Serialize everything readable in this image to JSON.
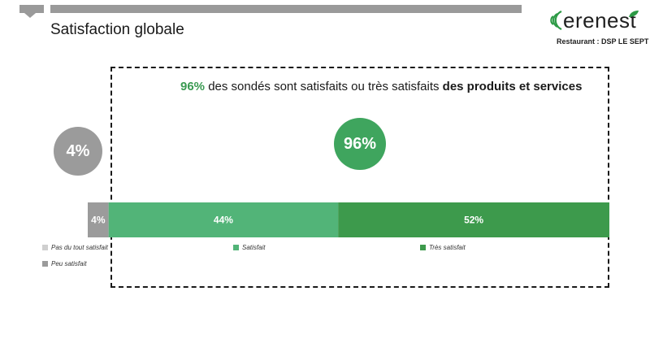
{
  "header": {
    "title": "Satisfaction globale",
    "logo_word": "erenest",
    "logo_subtitle": "Restaurant : DSP LE SEPT"
  },
  "headline": {
    "pct": "96%",
    "middle": " des sondés sont satisfaits ou très satisfaits ",
    "bold": "des produits et services"
  },
  "circles": {
    "unsatisfied": "4%",
    "satisfied": "96%"
  },
  "colors": {
    "accent_green": "#3a9a52",
    "satisfait": "#52b478",
    "tres_satisfait": "#3d9a4c",
    "pas_du_tout": "#cfcfcf",
    "peu_satisfait": "#9b9b9b"
  },
  "chart_data": {
    "type": "bar",
    "orientation": "horizontal-stacked-100",
    "categories": [
      "Pas du tout satisfait",
      "Peu satisfait",
      "Satisfait",
      "Très satisfait"
    ],
    "series": [
      {
        "name": "Pas du tout satisfait",
        "value": 0,
        "label": "",
        "color": "#cfcfcf"
      },
      {
        "name": "Peu satisfait",
        "value": 4,
        "label": "4%",
        "color": "#9b9b9b"
      },
      {
        "name": "Satisfait",
        "value": 44,
        "label": "44%",
        "color": "#52b478"
      },
      {
        "name": "Très satisfait",
        "value": 52,
        "label": "52%",
        "color": "#3d9a4c"
      }
    ],
    "legend": "bottom"
  },
  "legend": [
    {
      "label": "Pas du tout satisfait",
      "color": "#cfcfcf"
    },
    {
      "label": "Satisfait",
      "color": "#52b478"
    },
    {
      "label": "Très satisfait",
      "color": "#3d9a4c"
    },
    {
      "label": "Peu satisfait",
      "color": "#9b9b9b"
    }
  ]
}
